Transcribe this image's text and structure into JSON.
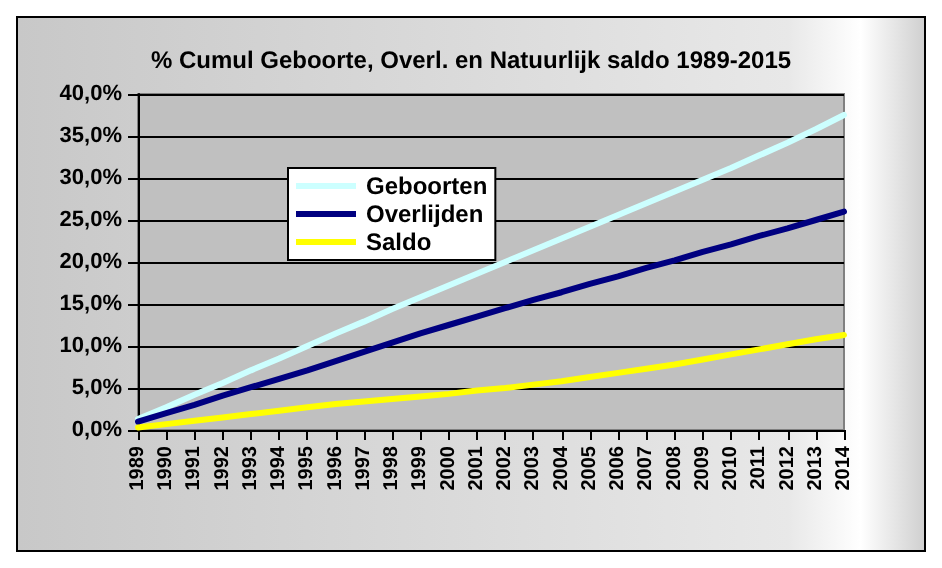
{
  "chart_data": {
    "type": "line",
    "title": "% Cumul Geboorte, Overl. en Natuurlijk saldo 1989-2015",
    "categories": [
      "1989",
      "1990",
      "1991",
      "1992",
      "1993",
      "1994",
      "1995",
      "1996",
      "1997",
      "1998",
      "1999",
      "2000",
      "2001",
      "2002",
      "2003",
      "2004",
      "2005",
      "2006",
      "2007",
      "2008",
      "2009",
      "2010",
      "2011",
      "2012",
      "2013",
      "2014"
    ],
    "series": [
      {
        "name": "Geboorten",
        "color": "#ccffff",
        "values": [
          1.3,
          2.7,
          4.2,
          5.6,
          7.1,
          8.5,
          10.0,
          11.5,
          12.9,
          14.4,
          15.8,
          17.2,
          18.6,
          20.0,
          21.4,
          22.8,
          24.2,
          25.6,
          27.0,
          28.4,
          29.8,
          31.2,
          32.7,
          34.2,
          35.8,
          37.5
        ]
      },
      {
        "name": "Overlijden",
        "color": "#000080",
        "values": [
          1.0,
          2.0,
          3.0,
          4.1,
          5.1,
          6.1,
          7.1,
          8.2,
          9.3,
          10.4,
          11.5,
          12.5,
          13.5,
          14.5,
          15.5,
          16.4,
          17.4,
          18.3,
          19.3,
          20.2,
          21.2,
          22.1,
          23.1,
          24.0,
          25.0,
          26.0
        ]
      },
      {
        "name": "Saldo",
        "color": "#ffff00",
        "values": [
          0.3,
          0.7,
          1.1,
          1.5,
          1.9,
          2.3,
          2.7,
          3.1,
          3.4,
          3.7,
          4.0,
          4.3,
          4.7,
          5.0,
          5.4,
          5.8,
          6.3,
          6.8,
          7.3,
          7.8,
          8.4,
          9.0,
          9.6,
          10.2,
          10.8,
          11.3
        ]
      }
    ],
    "ylim": [
      0,
      40
    ],
    "yticks": [
      {
        "value": 0,
        "label": "0,0%"
      },
      {
        "value": 5,
        "label": "5,0%"
      },
      {
        "value": 10,
        "label": "10,0%"
      },
      {
        "value": 15,
        "label": "15,0%"
      },
      {
        "value": 20,
        "label": "20,0%"
      },
      {
        "value": 25,
        "label": "25,0%"
      },
      {
        "value": 30,
        "label": "30,0%"
      },
      {
        "value": 35,
        "label": "35,0%"
      },
      {
        "value": 40,
        "label": "40,0%"
      }
    ],
    "grid": "y",
    "legend": "top left",
    "marker": "none",
    "line_style": "solid"
  }
}
